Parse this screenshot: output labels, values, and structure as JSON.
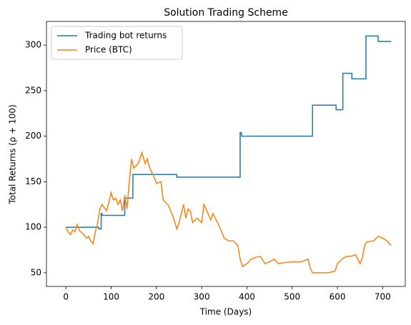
{
  "chart_data": {
    "type": "line",
    "title": "Solution Trading Scheme",
    "x_label": "Time (Days)",
    "y_label": "Total Returns (ρ + 100)",
    "xlim": [
      -43,
      750
    ],
    "ylim": [
      35,
      326
    ],
    "xticks": [
      0,
      100,
      200,
      300,
      400,
      500,
      600,
      700
    ],
    "yticks": [
      50,
      100,
      150,
      200,
      250,
      300
    ],
    "legend": "upper left",
    "series": [
      {
        "name": "Trading bot returns",
        "color": "#1f77b4",
        "x": [
          0,
          73,
          73,
          78,
          78,
          80,
          80,
          130,
          130,
          145,
          145,
          148,
          148,
          245,
          245,
          385,
          385,
          388,
          388,
          545,
          545,
          597,
          597,
          612,
          612,
          632,
          632,
          663,
          663,
          690,
          690,
          719
        ],
        "values": [
          100,
          100,
          98,
          98,
          115,
          115,
          113,
          113,
          132,
          132,
          132,
          132,
          158,
          158,
          155,
          155,
          204,
          204,
          200,
          200,
          234,
          234,
          229,
          229,
          269,
          269,
          263,
          263,
          310,
          310,
          304,
          304
        ]
      },
      {
        "name": "Price (BTC)",
        "color": "#ff7f0e",
        "x": [
          0,
          5,
          10,
          15,
          20,
          25,
          30,
          40,
          45,
          50,
          55,
          60,
          65,
          70,
          75,
          80,
          90,
          100,
          105,
          110,
          115,
          120,
          125,
          130,
          135,
          140,
          145,
          150,
          160,
          168,
          175,
          180,
          185,
          195,
          200,
          210,
          215,
          225,
          230,
          238,
          245,
          250,
          255,
          260,
          265,
          270,
          275,
          280,
          290,
          300,
          305,
          310,
          320,
          325,
          330,
          340,
          350,
          360,
          370,
          380,
          385,
          390,
          400,
          410,
          420,
          430,
          440,
          450,
          460,
          470,
          480,
          500,
          520,
          535,
          540,
          545,
          560,
          580,
          595,
          600,
          610,
          620,
          630,
          640,
          650,
          655,
          660,
          665,
          680,
          690,
          700,
          710,
          715,
          719
        ],
        "values": [
          100,
          95,
          92,
          97,
          95,
          103,
          96,
          92,
          88,
          90,
          85,
          82,
          95,
          105,
          120,
          125,
          118,
          138,
          130,
          132,
          125,
          130,
          118,
          135,
          120,
          150,
          175,
          165,
          170,
          182,
          170,
          175,
          165,
          155,
          148,
          150,
          130,
          125,
          120,
          110,
          98,
          105,
          115,
          125,
          110,
          120,
          118,
          105,
          110,
          105,
          125,
          120,
          108,
          115,
          110,
          100,
          88,
          85,
          85,
          80,
          65,
          57,
          60,
          65,
          67,
          68,
          60,
          62,
          65,
          60,
          61,
          62,
          62,
          65,
          55,
          50,
          50,
          50,
          52,
          60,
          65,
          68,
          68,
          70,
          60,
          66,
          80,
          84,
          85,
          90,
          88,
          85,
          82,
          80
        ]
      }
    ]
  }
}
